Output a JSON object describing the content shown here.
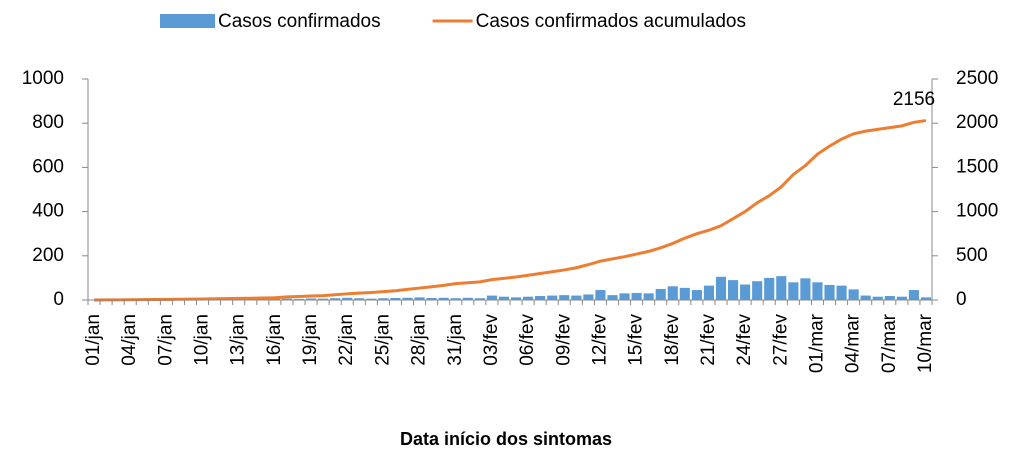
{
  "chart_data": {
    "type": "bar-line",
    "x_label": "Data início dos sintomas",
    "annotation": "2156",
    "categories": [
      "01/jan",
      null,
      null,
      "04/jan",
      null,
      null,
      "07/jan",
      null,
      null,
      "10/jan",
      null,
      null,
      "13/jan",
      null,
      null,
      "16/jan",
      null,
      null,
      "19/jan",
      null,
      null,
      "22/jan",
      null,
      null,
      "25/jan",
      null,
      null,
      "28/jan",
      null,
      null,
      "31/jan",
      null,
      null,
      "03/fev",
      null,
      null,
      "06/fev",
      null,
      null,
      "09/fev",
      null,
      null,
      "12/fev",
      null,
      null,
      "15/fev",
      null,
      null,
      "18/fev",
      null,
      null,
      "21/fev",
      null,
      null,
      "24/fev",
      null,
      null,
      "27/fev",
      null,
      null,
      "01/mar",
      null,
      null,
      "04/mar",
      null,
      null,
      "07/mar",
      null,
      null,
      "10/mar"
    ],
    "series": [
      {
        "name": "Casos confirmados",
        "type": "bar",
        "color": "#5b9bd5",
        "axis": "y",
        "values": [
          1,
          1,
          1,
          2,
          1,
          2,
          1,
          2,
          2,
          3,
          2,
          3,
          3,
          2,
          4,
          5,
          6,
          5,
          7,
          6,
          8,
          10,
          8,
          6,
          8,
          9,
          10,
          12,
          9,
          10,
          8,
          10,
          8,
          20,
          15,
          12,
          15,
          18,
          20,
          22,
          20,
          25,
          45,
          22,
          30,
          32,
          30,
          50,
          62,
          55,
          45,
          65,
          105,
          90,
          70,
          85,
          100,
          108,
          80,
          98,
          80,
          68,
          65,
          48,
          20,
          15,
          18,
          15,
          45,
          12
        ]
      },
      {
        "name": "Casos confirmados acumulados",
        "type": "line",
        "color": "#ed7d31",
        "axis": "y2",
        "values": [
          0,
          1,
          2,
          3,
          4,
          5,
          6,
          8,
          10,
          12,
          14,
          16,
          18,
          20,
          22,
          25,
          35,
          40,
          45,
          50,
          60,
          70,
          78,
          85,
          95,
          105,
          120,
          135,
          150,
          165,
          185,
          195,
          205,
          230,
          245,
          260,
          280,
          300,
          320,
          340,
          365,
          400,
          440,
          465,
          490,
          520,
          550,
          590,
          640,
          700,
          750,
          790,
          840,
          920,
          1000,
          1100,
          1180,
          1280,
          1420,
          1520,
          1650,
          1740,
          1820,
          1880,
          1910,
          1930,
          1950,
          1970,
          2010,
          2030
        ]
      }
    ],
    "ylim": [
      0,
      1000
    ],
    "yticks": [
      0,
      200,
      400,
      600,
      800,
      1000
    ],
    "y2lim": [
      0,
      2500
    ],
    "y2ticks": [
      0,
      500,
      1000,
      1500,
      2000,
      2500
    ],
    "legend": "top"
  }
}
